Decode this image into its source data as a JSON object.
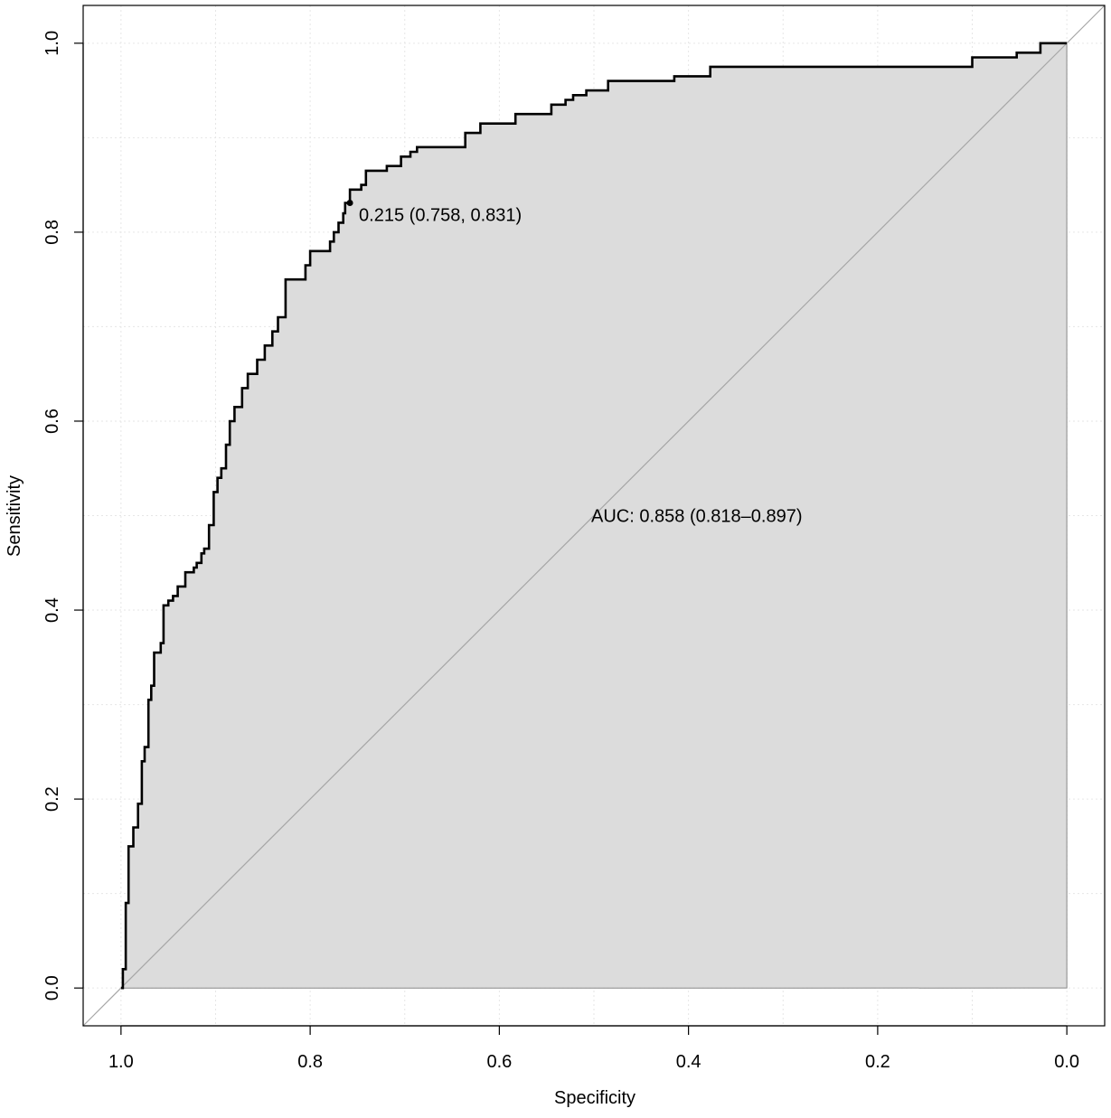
{
  "chart_data": {
    "type": "line",
    "subtype": "roc_curve",
    "xlabel": "Specificity",
    "ylabel": "Sensitivity",
    "xlim": [
      1.04,
      -0.04
    ],
    "ylim": [
      -0.04,
      1.04
    ],
    "x_reversed": true,
    "grid": true,
    "x_ticks": [
      1.0,
      0.8,
      0.6,
      0.4,
      0.2,
      0.0
    ],
    "x_tick_labels": [
      "1.0",
      "0.8",
      "0.6",
      "0.4",
      "0.2",
      "0.0"
    ],
    "y_ticks": [
      0.0,
      0.2,
      0.4,
      0.6,
      0.8,
      1.0
    ],
    "y_tick_labels": [
      "0.0",
      "0.2",
      "0.4",
      "0.6",
      "0.8",
      "1.0"
    ],
    "colors": {
      "curve": "#000000",
      "fill": "#dcdcdc",
      "diagonal": "#a6a6a6",
      "grid": "#e6e6e6"
    },
    "auc_label": "AUC: 0.858 (0.818–0.897)",
    "auc": 0.858,
    "auc_ci": [
      0.818,
      0.897
    ],
    "best_threshold": {
      "label": "0.215 (0.758, 0.831)",
      "threshold": 0.215,
      "specificity": 0.758,
      "sensitivity": 0.831
    },
    "series": [
      {
        "specificity": [
          1.0,
          0.998,
          0.998,
          0.995,
          0.995,
          0.992,
          0.992,
          0.987,
          0.987,
          0.982,
          0.982,
          0.978,
          0.978,
          0.975,
          0.975,
          0.971,
          0.971,
          0.968,
          0.968,
          0.965,
          0.965,
          0.958,
          0.958,
          0.955,
          0.955,
          0.95,
          0.95,
          0.945,
          0.945,
          0.94,
          0.94,
          0.932,
          0.932,
          0.923,
          0.923,
          0.92,
          0.92,
          0.915,
          0.915,
          0.912,
          0.912,
          0.907,
          0.907,
          0.902,
          0.902,
          0.898,
          0.898,
          0.894,
          0.894,
          0.889,
          0.889,
          0.885,
          0.885,
          0.88,
          0.88,
          0.872,
          0.872,
          0.866,
          0.866,
          0.856,
          0.856,
          0.848,
          0.848,
          0.84,
          0.84,
          0.834,
          0.834,
          0.826,
          0.826,
          0.805,
          0.805,
          0.8,
          0.8,
          0.779,
          0.779,
          0.775,
          0.775,
          0.77,
          0.77,
          0.765,
          0.765,
          0.763,
          0.763,
          0.758,
          0.758,
          0.746,
          0.746,
          0.741,
          0.741,
          0.719,
          0.719,
          0.704,
          0.704,
          0.694,
          0.694,
          0.687,
          0.687,
          0.636,
          0.636,
          0.62,
          0.62,
          0.583,
          0.583,
          0.545,
          0.545,
          0.53,
          0.53,
          0.522,
          0.522,
          0.508,
          0.508,
          0.485,
          0.485,
          0.415,
          0.415,
          0.377,
          0.377,
          0.1,
          0.1,
          0.053,
          0.053,
          0.028,
          0.028,
          0.0
        ],
        "sensitivity": [
          0.0,
          0.0,
          0.02,
          0.02,
          0.09,
          0.09,
          0.15,
          0.15,
          0.17,
          0.17,
          0.195,
          0.195,
          0.24,
          0.24,
          0.255,
          0.255,
          0.305,
          0.305,
          0.32,
          0.32,
          0.355,
          0.355,
          0.365,
          0.365,
          0.405,
          0.405,
          0.41,
          0.41,
          0.415,
          0.415,
          0.425,
          0.425,
          0.44,
          0.44,
          0.445,
          0.445,
          0.45,
          0.45,
          0.46,
          0.46,
          0.465,
          0.465,
          0.49,
          0.49,
          0.525,
          0.525,
          0.54,
          0.54,
          0.55,
          0.55,
          0.575,
          0.575,
          0.6,
          0.6,
          0.615,
          0.615,
          0.635,
          0.635,
          0.65,
          0.65,
          0.665,
          0.665,
          0.68,
          0.68,
          0.695,
          0.695,
          0.71,
          0.71,
          0.75,
          0.75,
          0.765,
          0.765,
          0.78,
          0.78,
          0.79,
          0.79,
          0.8,
          0.8,
          0.81,
          0.81,
          0.82,
          0.82,
          0.831,
          0.831,
          0.845,
          0.845,
          0.85,
          0.85,
          0.865,
          0.865,
          0.87,
          0.87,
          0.88,
          0.88,
          0.885,
          0.885,
          0.89,
          0.89,
          0.905,
          0.905,
          0.915,
          0.915,
          0.925,
          0.925,
          0.935,
          0.935,
          0.94,
          0.94,
          0.945,
          0.945,
          0.95,
          0.95,
          0.96,
          0.96,
          0.965,
          0.965,
          0.975,
          0.975,
          0.985,
          0.985,
          0.99,
          0.99,
          1.0,
          1.0
        ]
      }
    ]
  }
}
